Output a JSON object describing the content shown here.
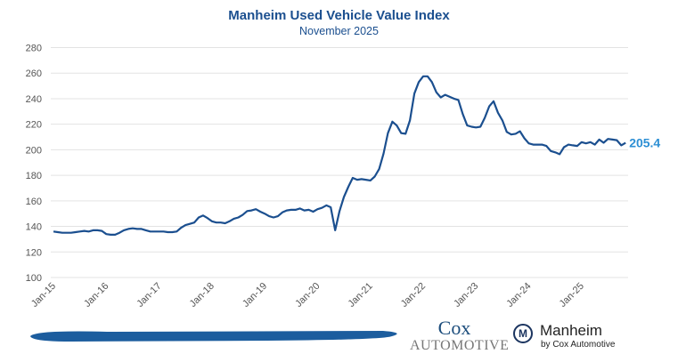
{
  "chart_data": {
    "type": "line",
    "title": "Manheim Used Vehicle Value Index",
    "subtitle": "November 2025",
    "xlabel": "",
    "ylabel": "",
    "ylim": [
      100,
      280
    ],
    "yticks": [
      100,
      120,
      140,
      160,
      180,
      200,
      220,
      240,
      260,
      280
    ],
    "x_start": "Jan-15",
    "x_end": "Nov-25",
    "xtick_labels": [
      "Jan-15",
      "Jan-16",
      "Jan-17",
      "Jan-18",
      "Jan-19",
      "Jan-20",
      "Jan-21",
      "Jan-22",
      "Jan-23",
      "Jan-24",
      "Jan-25"
    ],
    "grid": true,
    "legend": "none",
    "series": [
      {
        "color": "#1b4f8f",
        "values": [
          136,
          135.5,
          135,
          135,
          135,
          135.5,
          136,
          136.5,
          136,
          137,
          137,
          136.5,
          134,
          133.5,
          133.5,
          135,
          137,
          138,
          138.5,
          138,
          138,
          137,
          136,
          136,
          136,
          136,
          135.5,
          135.5,
          136,
          139,
          141,
          142,
          143,
          147,
          148.5,
          146.5,
          144,
          143,
          143,
          142.5,
          144,
          146,
          147,
          149,
          152,
          152.5,
          153.5,
          151.5,
          150,
          148,
          147,
          148,
          151,
          152.5,
          153,
          153,
          154,
          152.5,
          153,
          151.5,
          153.5,
          154.5,
          156.5,
          155,
          137,
          152,
          163,
          171,
          178,
          176.5,
          177,
          176.5,
          176,
          179,
          185,
          197,
          213,
          222,
          219,
          213,
          212.5,
          223,
          244,
          253,
          257.5,
          257.5,
          253,
          245,
          241,
          243,
          241.5,
          240,
          239,
          228,
          219,
          218,
          217.5,
          218,
          225,
          234,
          238,
          229,
          223,
          214,
          212,
          212.5,
          214.5,
          209,
          205,
          204,
          204,
          204,
          203,
          199,
          198,
          196.5,
          202,
          204,
          203.5,
          203,
          206,
          205,
          206,
          204,
          208,
          205.5,
          208.5,
          208,
          207.5,
          203.5,
          205.4
        ]
      }
    ],
    "end_label": "205.4",
    "end_label_color": "#2d8fd4"
  },
  "footer": {
    "cox_line1": "Cox",
    "cox_line2": "Automotive",
    "manheim_name": "Manheim",
    "manheim_sub": "by Cox Automotive",
    "manheim_logo_letter": "M"
  }
}
